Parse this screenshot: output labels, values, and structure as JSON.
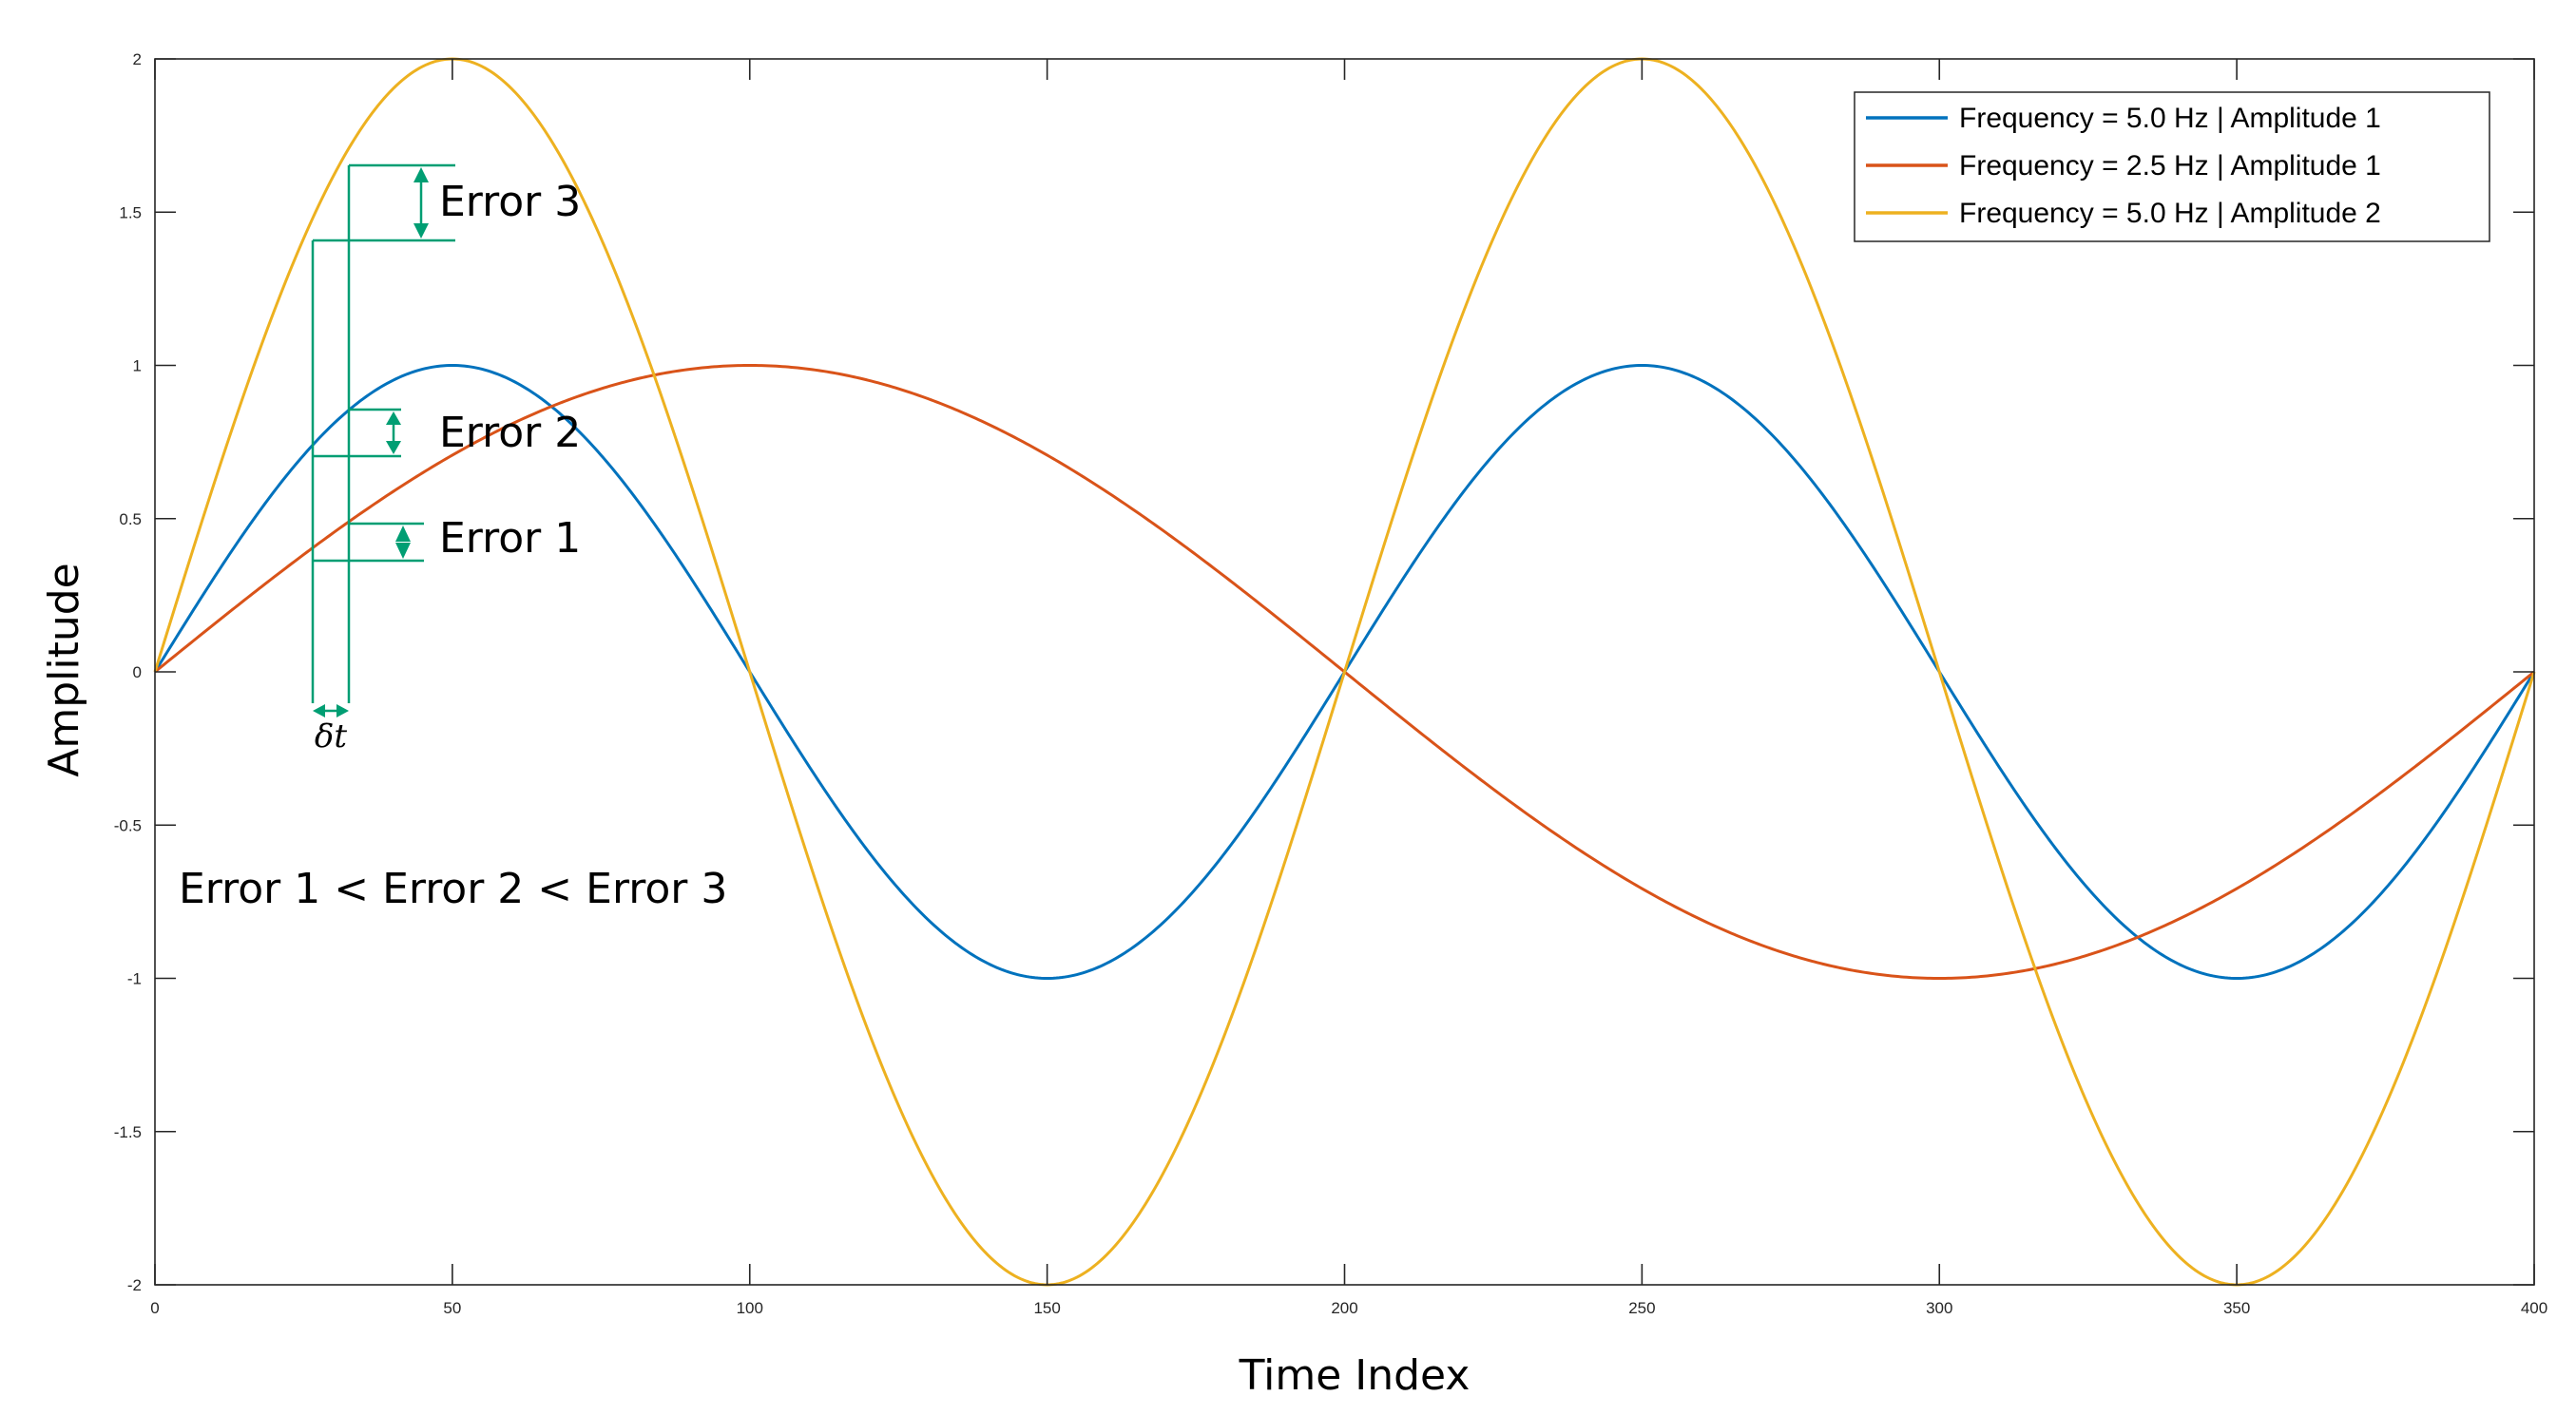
{
  "chart_data": {
    "type": "line",
    "title": "",
    "xlabel": "Time Index",
    "ylabel": "Amplitude",
    "xlim": [
      0,
      400
    ],
    "ylim": [
      -2,
      2
    ],
    "x_ticks": [
      0,
      50,
      100,
      150,
      200,
      250,
      300,
      350,
      400
    ],
    "y_ticks": [
      2,
      1.5,
      1,
      0.5,
      0,
      -0.5,
      -1,
      -1.5,
      -2
    ],
    "y_tick_labels": [
      "2",
      "1.5",
      "1",
      "0.5",
      "0",
      "-0.5",
      "-1",
      "-1.5",
      "-2"
    ],
    "grid": false,
    "legend_position": "top-right",
    "series": [
      {
        "name": "Frequency = 5.0 Hz | Amplitude 1",
        "color": "#0072BD",
        "amplitude": 1,
        "period": 200,
        "x": [
          0,
          25,
          50,
          75,
          100,
          125,
          150,
          175,
          200,
          225,
          250,
          275,
          300,
          325,
          350,
          375,
          400
        ],
        "values": [
          0,
          0.707,
          1,
          0.707,
          0,
          -0.707,
          -1,
          -0.707,
          0,
          0.707,
          1,
          0.707,
          0,
          -0.707,
          -1,
          -0.707,
          0
        ]
      },
      {
        "name": "Frequency = 2.5 Hz | Amplitude 1",
        "color": "#D95319",
        "amplitude": 1,
        "period": 400,
        "x": [
          0,
          50,
          100,
          150,
          200,
          250,
          300,
          350,
          400
        ],
        "values": [
          0,
          0.707,
          1,
          0.707,
          0,
          -0.707,
          -1,
          -0.707,
          0
        ]
      },
      {
        "name": "Frequency = 5.0 Hz | Amplitude 2",
        "color": "#EDB120",
        "amplitude": 2,
        "period": 200,
        "x": [
          0,
          25,
          50,
          75,
          100,
          125,
          150,
          175,
          200,
          225,
          250,
          275,
          300,
          325,
          350,
          375,
          400
        ],
        "values": [
          0,
          1.414,
          2,
          1.414,
          0,
          -1.414,
          -2,
          -1.414,
          0,
          1.414,
          2,
          1.414,
          0,
          -1.414,
          -2,
          -1.414,
          0
        ]
      }
    ],
    "annotations": {
      "color": "#009E73",
      "error_labels": [
        "Error 3",
        "Error 2",
        "Error 1"
      ],
      "delta_label": "δt",
      "summary": "Error 1 < Error 2 < Error 3"
    }
  }
}
